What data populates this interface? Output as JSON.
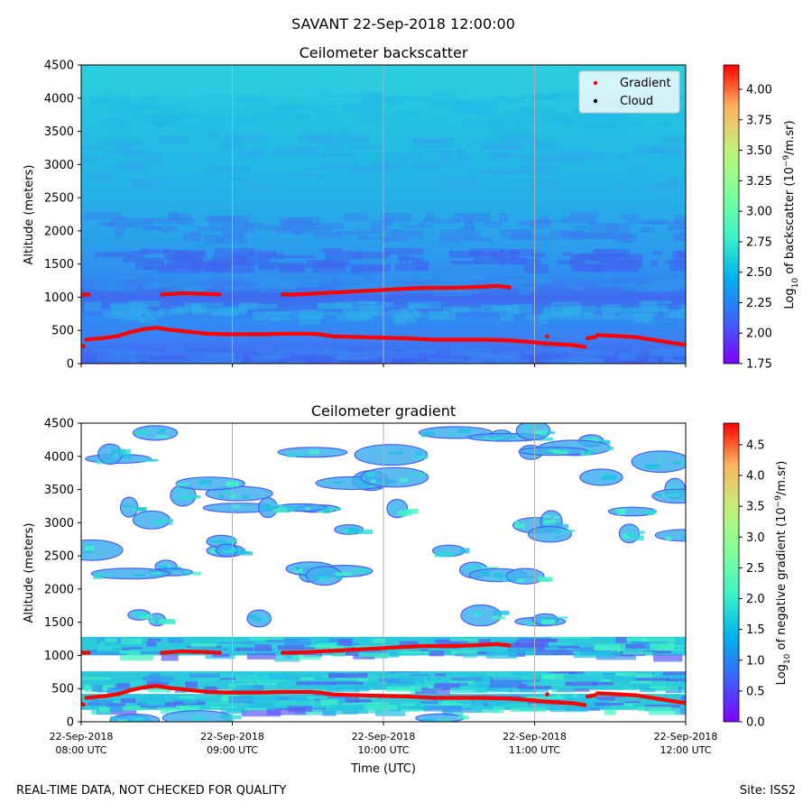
{
  "figure_title": "SAVANT 22-Sep-2018 12:00:00",
  "footer": {
    "left": "REAL-TIME DATA, NOT CHECKED FOR QUALITY",
    "right": "Site: ISS2"
  },
  "colors": {
    "gradient_marker": "#ff0000",
    "cloud_marker": "#000000",
    "colormap": [
      "#7f00ff",
      "#3f60fc",
      "#00b4ec",
      "#3ff4c6",
      "#7ffe98",
      "#c0f37a",
      "#ffb360",
      "#ff0000"
    ]
  },
  "chart_data": [
    {
      "type": "heatmap",
      "title": "Ceilometer backscatter",
      "ylabel": "Altitude (meters)",
      "ylim": [
        0,
        4500
      ],
      "yticks": [
        0,
        500,
        1000,
        1500,
        2000,
        2500,
        3000,
        3500,
        4000,
        4500
      ],
      "xlim": [
        "08:00",
        "12:00"
      ],
      "xtick_labels": [],
      "vertical_grid": true,
      "colorbar": {
        "label_prefix": "Log",
        "label_sub": "10",
        "label_main": " of backscatter (10",
        "label_sup": "−9",
        "label_end": "/m.sr)",
        "range": [
          1.75,
          4.2
        ],
        "ticks": [
          "1.75",
          "2.00",
          "2.25",
          "2.50",
          "2.75",
          "3.00",
          "3.25",
          "3.50",
          "3.75",
          "4.00"
        ]
      },
      "legend": {
        "position": "top-right",
        "entries": [
          {
            "label": "Gradient",
            "color": "#ff0000"
          },
          {
            "label": "Cloud",
            "color": "#000000"
          }
        ]
      }
    },
    {
      "type": "heatmap",
      "title": "Ceilometer gradient",
      "ylabel": "Altitude (meters)",
      "xlabel": "Time (UTC)",
      "ylim": [
        0,
        4500
      ],
      "yticks": [
        0,
        500,
        1000,
        1500,
        2000,
        2500,
        3000,
        3500,
        4000,
        4500
      ],
      "xlim": [
        "08:00",
        "12:00"
      ],
      "xtick_labels": [
        [
          "22-Sep-2018",
          "08:00 UTC"
        ],
        [
          "22-Sep-2018",
          "09:00 UTC"
        ],
        [
          "22-Sep-2018",
          "10:00 UTC"
        ],
        [
          "22-Sep-2018",
          "11:00 UTC"
        ],
        [
          "22-Sep-2018",
          "12:00 UTC"
        ]
      ],
      "vertical_grid": true,
      "colorbar": {
        "label_prefix": "Log",
        "label_sub": "10",
        "label_main": " of negative gradient (10",
        "label_sup": "−9",
        "label_end": "/m.sr)",
        "range": [
          0.0,
          4.85
        ],
        "ticks": [
          "0.0",
          "0.5",
          "1.0",
          "1.5",
          "2.0",
          "2.5",
          "3.0",
          "3.5",
          "4.0",
          "4.5"
        ]
      }
    }
  ],
  "gradient_segments": [
    [
      [
        "08:00",
        270
      ],
      [
        "08:01",
        260
      ]
    ],
    [
      [
        "08:00",
        1040
      ],
      [
        "08:03",
        1040
      ]
    ],
    [
      [
        "08:02",
        360
      ],
      [
        "08:10",
        390
      ],
      [
        "08:15",
        420
      ],
      [
        "08:20",
        480
      ],
      [
        "08:25",
        520
      ],
      [
        "08:30",
        540
      ],
      [
        "08:35",
        510
      ],
      [
        "08:40",
        490
      ],
      [
        "08:45",
        470
      ],
      [
        "08:50",
        450
      ],
      [
        "09:00",
        440
      ],
      [
        "09:10",
        440
      ],
      [
        "09:20",
        450
      ],
      [
        "09:30",
        450
      ],
      [
        "09:35",
        440
      ],
      [
        "09:40",
        410
      ],
      [
        "09:50",
        400
      ],
      [
        "10:00",
        390
      ],
      [
        "10:10",
        380
      ],
      [
        "10:20",
        360
      ],
      [
        "10:30",
        360
      ],
      [
        "10:40",
        360
      ],
      [
        "10:50",
        350
      ],
      [
        "11:00",
        320
      ],
      [
        "11:05",
        300
      ],
      [
        "11:10",
        290
      ],
      [
        "11:15",
        280
      ],
      [
        "11:20",
        250
      ]
    ],
    [
      [
        "08:32",
        1040
      ],
      [
        "08:40",
        1060
      ],
      [
        "08:50",
        1050
      ],
      [
        "08:55",
        1040
      ]
    ],
    [
      [
        "09:20",
        1040
      ],
      [
        "09:25",
        1040
      ],
      [
        "09:35",
        1060
      ],
      [
        "09:45",
        1080
      ],
      [
        "09:55",
        1100
      ],
      [
        "10:05",
        1120
      ],
      [
        "10:15",
        1140
      ],
      [
        "10:25",
        1140
      ],
      [
        "10:35",
        1150
      ],
      [
        "10:45",
        1170
      ],
      [
        "10:50",
        1150
      ]
    ],
    [
      [
        "11:05",
        410
      ],
      [
        "11:05",
        410
      ]
    ],
    [
      [
        "11:21",
        380
      ],
      [
        "11:24",
        400
      ],
      [
        "11:25",
        430
      ],
      [
        "11:30",
        420
      ],
      [
        "11:40",
        400
      ],
      [
        "11:50",
        340
      ],
      [
        "11:55",
        310
      ],
      [
        "12:00",
        280
      ]
    ]
  ]
}
